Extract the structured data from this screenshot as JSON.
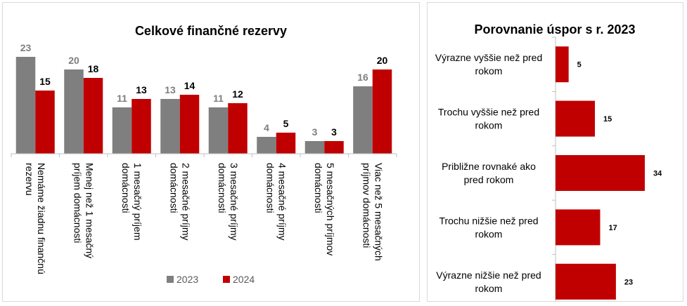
{
  "chart_data": [
    {
      "type": "bar",
      "title": "Celkové finančné rezervy",
      "categories": [
        "Nemáme žiadnu finančnú rezervu",
        "Menej než 1 mesačný príjem domácnosti",
        "1 mesačný príjem domácnosti",
        "2 mesačné príjmy domácnosti",
        "3 mesačné príjmy domácnosti",
        "4 mesačné príjmy domácnosti",
        "5 mesačných príjmov domácnosti",
        "Viac než 5 mesačných príjmov domácnosti"
      ],
      "category_lines": [
        [
          "Nemáme žiadnu finančnú",
          "rezervu"
        ],
        [
          "Menej než 1 mesačný",
          "príjem domácnosti"
        ],
        [
          "1 mesačný príjem",
          "domácnosti"
        ],
        [
          "2 mesačné príjmy",
          "domácnosti"
        ],
        [
          "3 mesačné príjmy",
          "domácnosti"
        ],
        [
          "4 mesačné príjmy",
          "domácnosti"
        ],
        [
          "5 mesačných príjmov",
          "domácnosti"
        ],
        [
          "Viac než 5 mesačných",
          "príjmov domácnosti"
        ]
      ],
      "series": [
        {
          "name": "2023",
          "values": [
            23,
            20,
            11,
            13,
            11,
            4,
            3,
            16
          ],
          "color": "#7f7f7f"
        },
        {
          "name": "2024",
          "values": [
            15,
            18,
            13,
            14,
            12,
            5,
            3,
            20
          ],
          "color": "#c00000"
        }
      ],
      "ylim": [
        0,
        30
      ],
      "grid": false,
      "legend": "bottom"
    },
    {
      "type": "bar",
      "orientation": "horizontal",
      "title": "Porovnanie úspor s r. 2023",
      "categories": [
        "Výrazne vyššie než pred rokom",
        "Trochu vyššie než pred rokom",
        "Približne rovnaké ako pred rokom",
        "Trochu nižšie než pred rokom",
        "Výrazne nižšie než pred rokom"
      ],
      "category_lines": [
        [
          "Výrazne vyššie než pred",
          "rokom"
        ],
        [
          "Trochu vyššie než pred",
          "rokom"
        ],
        [
          "Približne rovnaké ako",
          "pred rokom"
        ],
        [
          "Trochu nižšie než pred",
          "rokom"
        ],
        [
          "Výrazne nižšie než pred",
          "rokom"
        ]
      ],
      "values": [
        5,
        15,
        34,
        17,
        23
      ],
      "color": "#c00000",
      "xlim": [
        0,
        34
      ],
      "grid": false
    }
  ]
}
